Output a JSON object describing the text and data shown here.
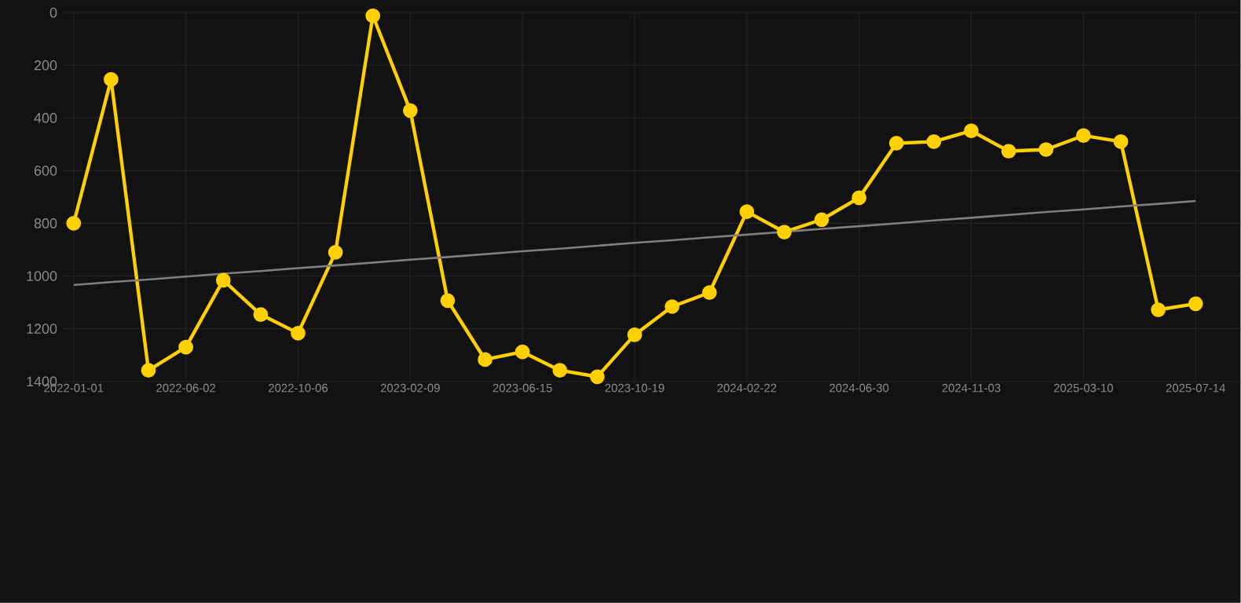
{
  "chart_data": {
    "type": "line",
    "categories": [
      "2022-01-01",
      null,
      null,
      "2022-06-02",
      null,
      null,
      "2022-10-06",
      null,
      null,
      "2023-02-09",
      null,
      null,
      "2023-06-15",
      null,
      null,
      "2023-10-19",
      null,
      null,
      "2024-02-22",
      null,
      null,
      "2024-06-30",
      null,
      null,
      "2024-11-03",
      null,
      null,
      "2025-03-10",
      null,
      null,
      "2025-07-14"
    ],
    "series": [
      {
        "color": "#ffd000",
        "marker": "circle",
        "values": [
          800,
          254,
          1358,
          1270,
          1016,
          1146,
          1217,
          910,
          12,
          372,
          1093,
          1317,
          1288,
          1358,
          1382,
          1223,
          1116,
          1063,
          756,
          833,
          786,
          703,
          496,
          490,
          449,
          526,
          520,
          467,
          490,
          1128,
          1105
        ]
      },
      {
        "type": "line",
        "color": "#808080",
        "marker": "none",
        "values": [
          1034,
          1023,
          1013,
          1002,
          991,
          981,
          970,
          960,
          949,
          938,
          928,
          917,
          906,
          896,
          885,
          874,
          864,
          853,
          843,
          832,
          821,
          811,
          800,
          789,
          779,
          768,
          757,
          747,
          736,
          726,
          715
        ]
      }
    ],
    "ylim": [
      1400,
      0
    ],
    "yticks": [
      0,
      200,
      400,
      600,
      800,
      1000,
      1200,
      1400
    ],
    "grid": true,
    "legend": false
  }
}
